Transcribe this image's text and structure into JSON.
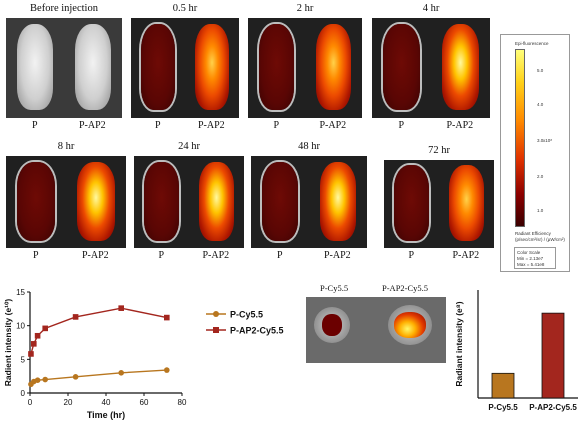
{
  "imaging": {
    "timepoints": [
      {
        "label": "Before injection",
        "left": "P",
        "right": "P-AP2",
        "intensity_p": 0.0,
        "intensity_ap2": 0.0
      },
      {
        "label": "0.5 hr",
        "left": "P",
        "right": "P-AP2",
        "intensity_p": 0.15,
        "intensity_ap2": 0.55
      },
      {
        "label": "2 hr",
        "left": "P",
        "right": "P-AP2",
        "intensity_p": 0.12,
        "intensity_ap2": 0.75
      },
      {
        "label": "4 hr",
        "left": "P",
        "right": "P-AP2",
        "intensity_p": 0.12,
        "intensity_ap2": 0.9
      },
      {
        "label": "8 hr",
        "left": "P",
        "right": "P-AP2",
        "intensity_p": 0.1,
        "intensity_ap2": 1.0
      },
      {
        "label": "24 hr",
        "left": "P",
        "right": "P-AP2",
        "intensity_p": 0.1,
        "intensity_ap2": 0.95
      },
      {
        "label": "48 hr",
        "left": "P",
        "right": "P-AP2",
        "intensity_p": 0.1,
        "intensity_ap2": 0.9
      },
      {
        "label": "72 hr",
        "left": "P",
        "right": "P-AP2",
        "intensity_p": 0.1,
        "intensity_ap2": 0.8
      }
    ]
  },
  "colorbar": {
    "title": "Epi-fluorescence",
    "exponent": "x10⁸",
    "ticks": [
      "5.0",
      "4.0",
      "3.0",
      "2.0",
      "1.0"
    ],
    "unit_title": "Radiant Efficiency",
    "unit": "(p/sec/cm²/sr) / (µW/cm²)",
    "scale_title": "Color Scale",
    "scale_min": "Min = 2.13e7",
    "scale_max": "Max = 5.41e8"
  },
  "organ": {
    "left_label": "P-Cy5.5",
    "right_label": "P-AP2-Cy5.5"
  },
  "chart_data": [
    {
      "type": "line",
      "xlabel": "Time (hr)",
      "ylabel": "Radient intensity (e¹⁰)",
      "xlim": [
        0,
        80
      ],
      "ylim": [
        0,
        15
      ],
      "xticks": [
        "0",
        "20",
        "40",
        "60",
        "80"
      ],
      "yticks": [
        "0",
        "5",
        "10",
        "15"
      ],
      "legend_position": "right",
      "series": [
        {
          "name": "P-Cy5.5",
          "color": "#b8761f",
          "marker": "circle",
          "x": [
            0.5,
            2,
            4,
            8,
            24,
            48,
            72
          ],
          "y": [
            1.3,
            1.7,
            1.9,
            2.0,
            2.4,
            3.0,
            3.4
          ]
        },
        {
          "name": "P-AP2-Cy5.5",
          "color": "#a3261e",
          "marker": "square",
          "x": [
            0.5,
            2,
            4,
            8,
            24,
            48,
            72
          ],
          "y": [
            5.8,
            7.3,
            8.5,
            9.6,
            11.3,
            12.6,
            11.2
          ]
        }
      ]
    },
    {
      "type": "bar",
      "ylabel": "Radiant intensity (e⁸)",
      "categories": [
        "P-Cy5.5",
        "P-AP2-Cy5.5"
      ],
      "values": [
        3.2,
        11.0
      ],
      "colors": [
        "#b8761f",
        "#a3261e"
      ],
      "ylim": [
        0,
        14
      ]
    }
  ]
}
